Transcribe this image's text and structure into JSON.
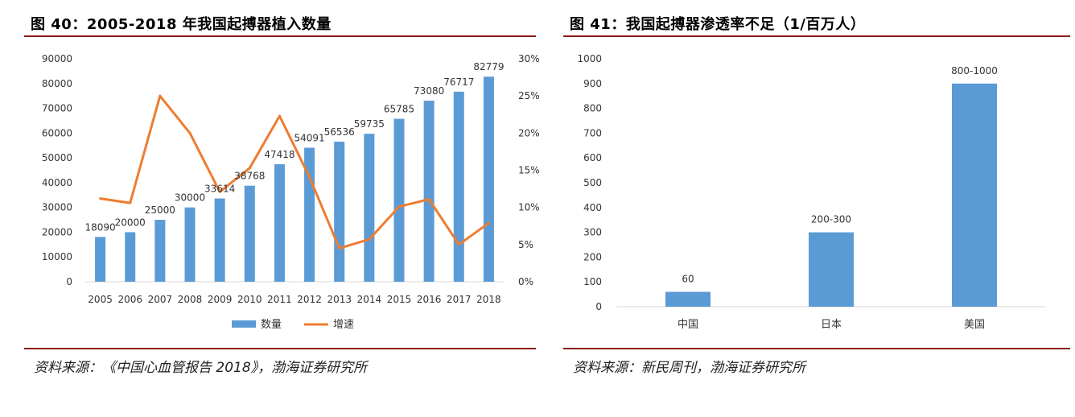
{
  "left_panel": {
    "figure_title": "图 40：2005-2018 年我国起搏器植入数量",
    "source": "资料来源：《中国心血管报告 2018》，渤海证券研究所"
  },
  "right_panel": {
    "figure_title": "图 41：我国起搏器渗透率不足（1/百万人）",
    "source": "资料来源：新民周刊，渤海证券研究所"
  },
  "colors": {
    "bar": "#5b9bd5",
    "line": "#ed7d31",
    "axis": "#d9d9d9",
    "rule": "#8b1a1a"
  },
  "chart_data": [
    {
      "type": "bar",
      "categories": [
        "2005",
        "2006",
        "2007",
        "2008",
        "2009",
        "2010",
        "2011",
        "2012",
        "2013",
        "2014",
        "2015",
        "2016",
        "2017",
        "2018"
      ],
      "series": [
        {
          "name": "数量",
          "type": "bar",
          "axis": "left",
          "values": [
            18090,
            20000,
            25000,
            30000,
            33614,
            38768,
            47418,
            54091,
            56536,
            59735,
            65785,
            73080,
            76717,
            82779
          ],
          "data_labels": [
            "18090",
            "20000",
            "25000",
            "30000",
            "33614",
            "38768",
            "47418",
            "54091",
            "56536",
            "59735",
            "65785",
            "73080",
            "76717",
            "82779"
          ]
        },
        {
          "name": "增速",
          "type": "line",
          "axis": "right",
          "values": [
            0.112,
            0.106,
            0.25,
            0.2,
            0.121,
            0.153,
            0.223,
            0.141,
            0.045,
            0.057,
            0.101,
            0.111,
            0.05,
            0.079
          ]
        }
      ],
      "ylim_left": [
        0,
        90000
      ],
      "yticks_left": [
        "0",
        "10000",
        "20000",
        "30000",
        "40000",
        "50000",
        "60000",
        "70000",
        "80000",
        "90000"
      ],
      "ylim_right": [
        0,
        0.3
      ],
      "yticks_right": [
        "0%",
        "5%",
        "10%",
        "15%",
        "20%",
        "25%",
        "30%"
      ],
      "legend": [
        "数量",
        "增速"
      ],
      "legend_position": "bottom",
      "grid": false
    },
    {
      "type": "bar",
      "categories": [
        "中国",
        "日本",
        "美国"
      ],
      "values": [
        60,
        300,
        900
      ],
      "data_labels": [
        "60",
        "200-300",
        "800-1000"
      ],
      "ylim": [
        0,
        1000
      ],
      "yticks": [
        "0",
        "100",
        "200",
        "300",
        "400",
        "500",
        "600",
        "700",
        "800",
        "900",
        "1000"
      ],
      "grid": false
    }
  ]
}
